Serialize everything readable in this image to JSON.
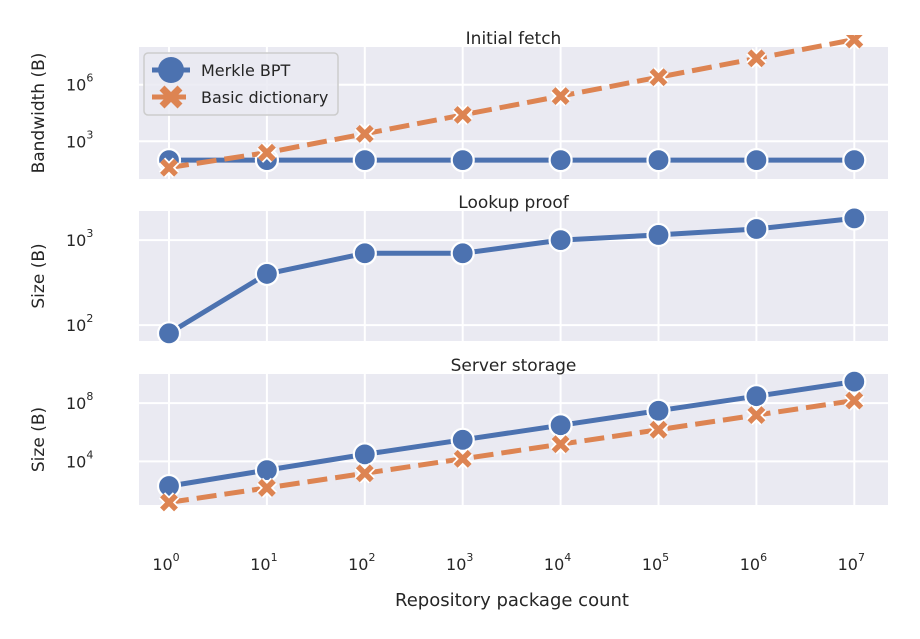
{
  "colors": {
    "panel_bg": "#eaeaf2",
    "grid": "#ffffff",
    "merkle": "#4c72b0",
    "basic": "#dd8452",
    "text": "#262626"
  },
  "xlabel": "Repository package count",
  "x_ticks": [
    {
      "base": "10",
      "exp": "0"
    },
    {
      "base": "10",
      "exp": "1"
    },
    {
      "base": "10",
      "exp": "2"
    },
    {
      "base": "10",
      "exp": "3"
    },
    {
      "base": "10",
      "exp": "4"
    },
    {
      "base": "10",
      "exp": "5"
    },
    {
      "base": "10",
      "exp": "6"
    },
    {
      "base": "10",
      "exp": "7"
    }
  ],
  "legend": {
    "placement": "top-left",
    "entries": [
      {
        "label": "Merkle BPT",
        "marker": "circle",
        "series": "merkle"
      },
      {
        "label": "Basic dictionary",
        "marker": "x",
        "series": "basic"
      }
    ]
  },
  "chart_data": [
    {
      "type": "line",
      "title": "Initial fetch",
      "ylabel": "Bandwidth (B)",
      "yscale": "log",
      "ylim": [
        10,
        100000000
      ],
      "y_ticks": [
        {
          "base": "10",
          "exp": "3"
        },
        {
          "base": "10",
          "exp": "6"
        }
      ],
      "y_tick_values": [
        1000,
        1000000
      ],
      "x": [
        1,
        10,
        100,
        1000,
        10000,
        100000,
        1000000,
        10000000
      ],
      "series": [
        {
          "name": "Merkle BPT",
          "key": "merkle",
          "values": [
            100,
            100,
            100,
            100,
            100,
            100,
            100,
            100
          ]
        },
        {
          "name": "Basic dictionary",
          "key": "basic",
          "values": [
            40,
            250,
            2500,
            25000,
            250000,
            2500000,
            25000000,
            250000000
          ]
        }
      ]
    },
    {
      "type": "line",
      "title": "Lookup proof",
      "ylabel": "Size (B)",
      "yscale": "log",
      "ylim": [
        65,
        2200
      ],
      "y_ticks": [
        {
          "base": "10",
          "exp": "2"
        },
        {
          "base": "10",
          "exp": "3"
        }
      ],
      "y_tick_values": [
        100,
        1000
      ],
      "x": [
        1,
        10,
        100,
        1000,
        10000,
        100000,
        1000000,
        10000000
      ],
      "series": [
        {
          "name": "Merkle BPT",
          "key": "merkle",
          "values": [
            80,
            400,
            700,
            700,
            1000,
            1150,
            1350,
            1800
          ]
        }
      ]
    },
    {
      "type": "line",
      "title": "Server storage",
      "ylabel": "Size (B)",
      "yscale": "log",
      "ylim": [
        10,
        10000000000
      ],
      "y_ticks": [
        {
          "base": "10",
          "exp": "4"
        },
        {
          "base": "10",
          "exp": "8"
        }
      ],
      "y_tick_values": [
        10000,
        100000000
      ],
      "x": [
        1,
        10,
        100,
        1000,
        10000,
        100000,
        1000000,
        10000000
      ],
      "series": [
        {
          "name": "Merkle BPT",
          "key": "merkle",
          "values": [
            200,
            2500,
            30000,
            300000,
            3000000,
            30000000,
            300000000,
            3000000000
          ]
        },
        {
          "name": "Basic dictionary",
          "key": "basic",
          "values": [
            15,
            150,
            1500,
            15000,
            150000,
            1500000,
            15000000,
            150000000
          ]
        }
      ]
    }
  ]
}
